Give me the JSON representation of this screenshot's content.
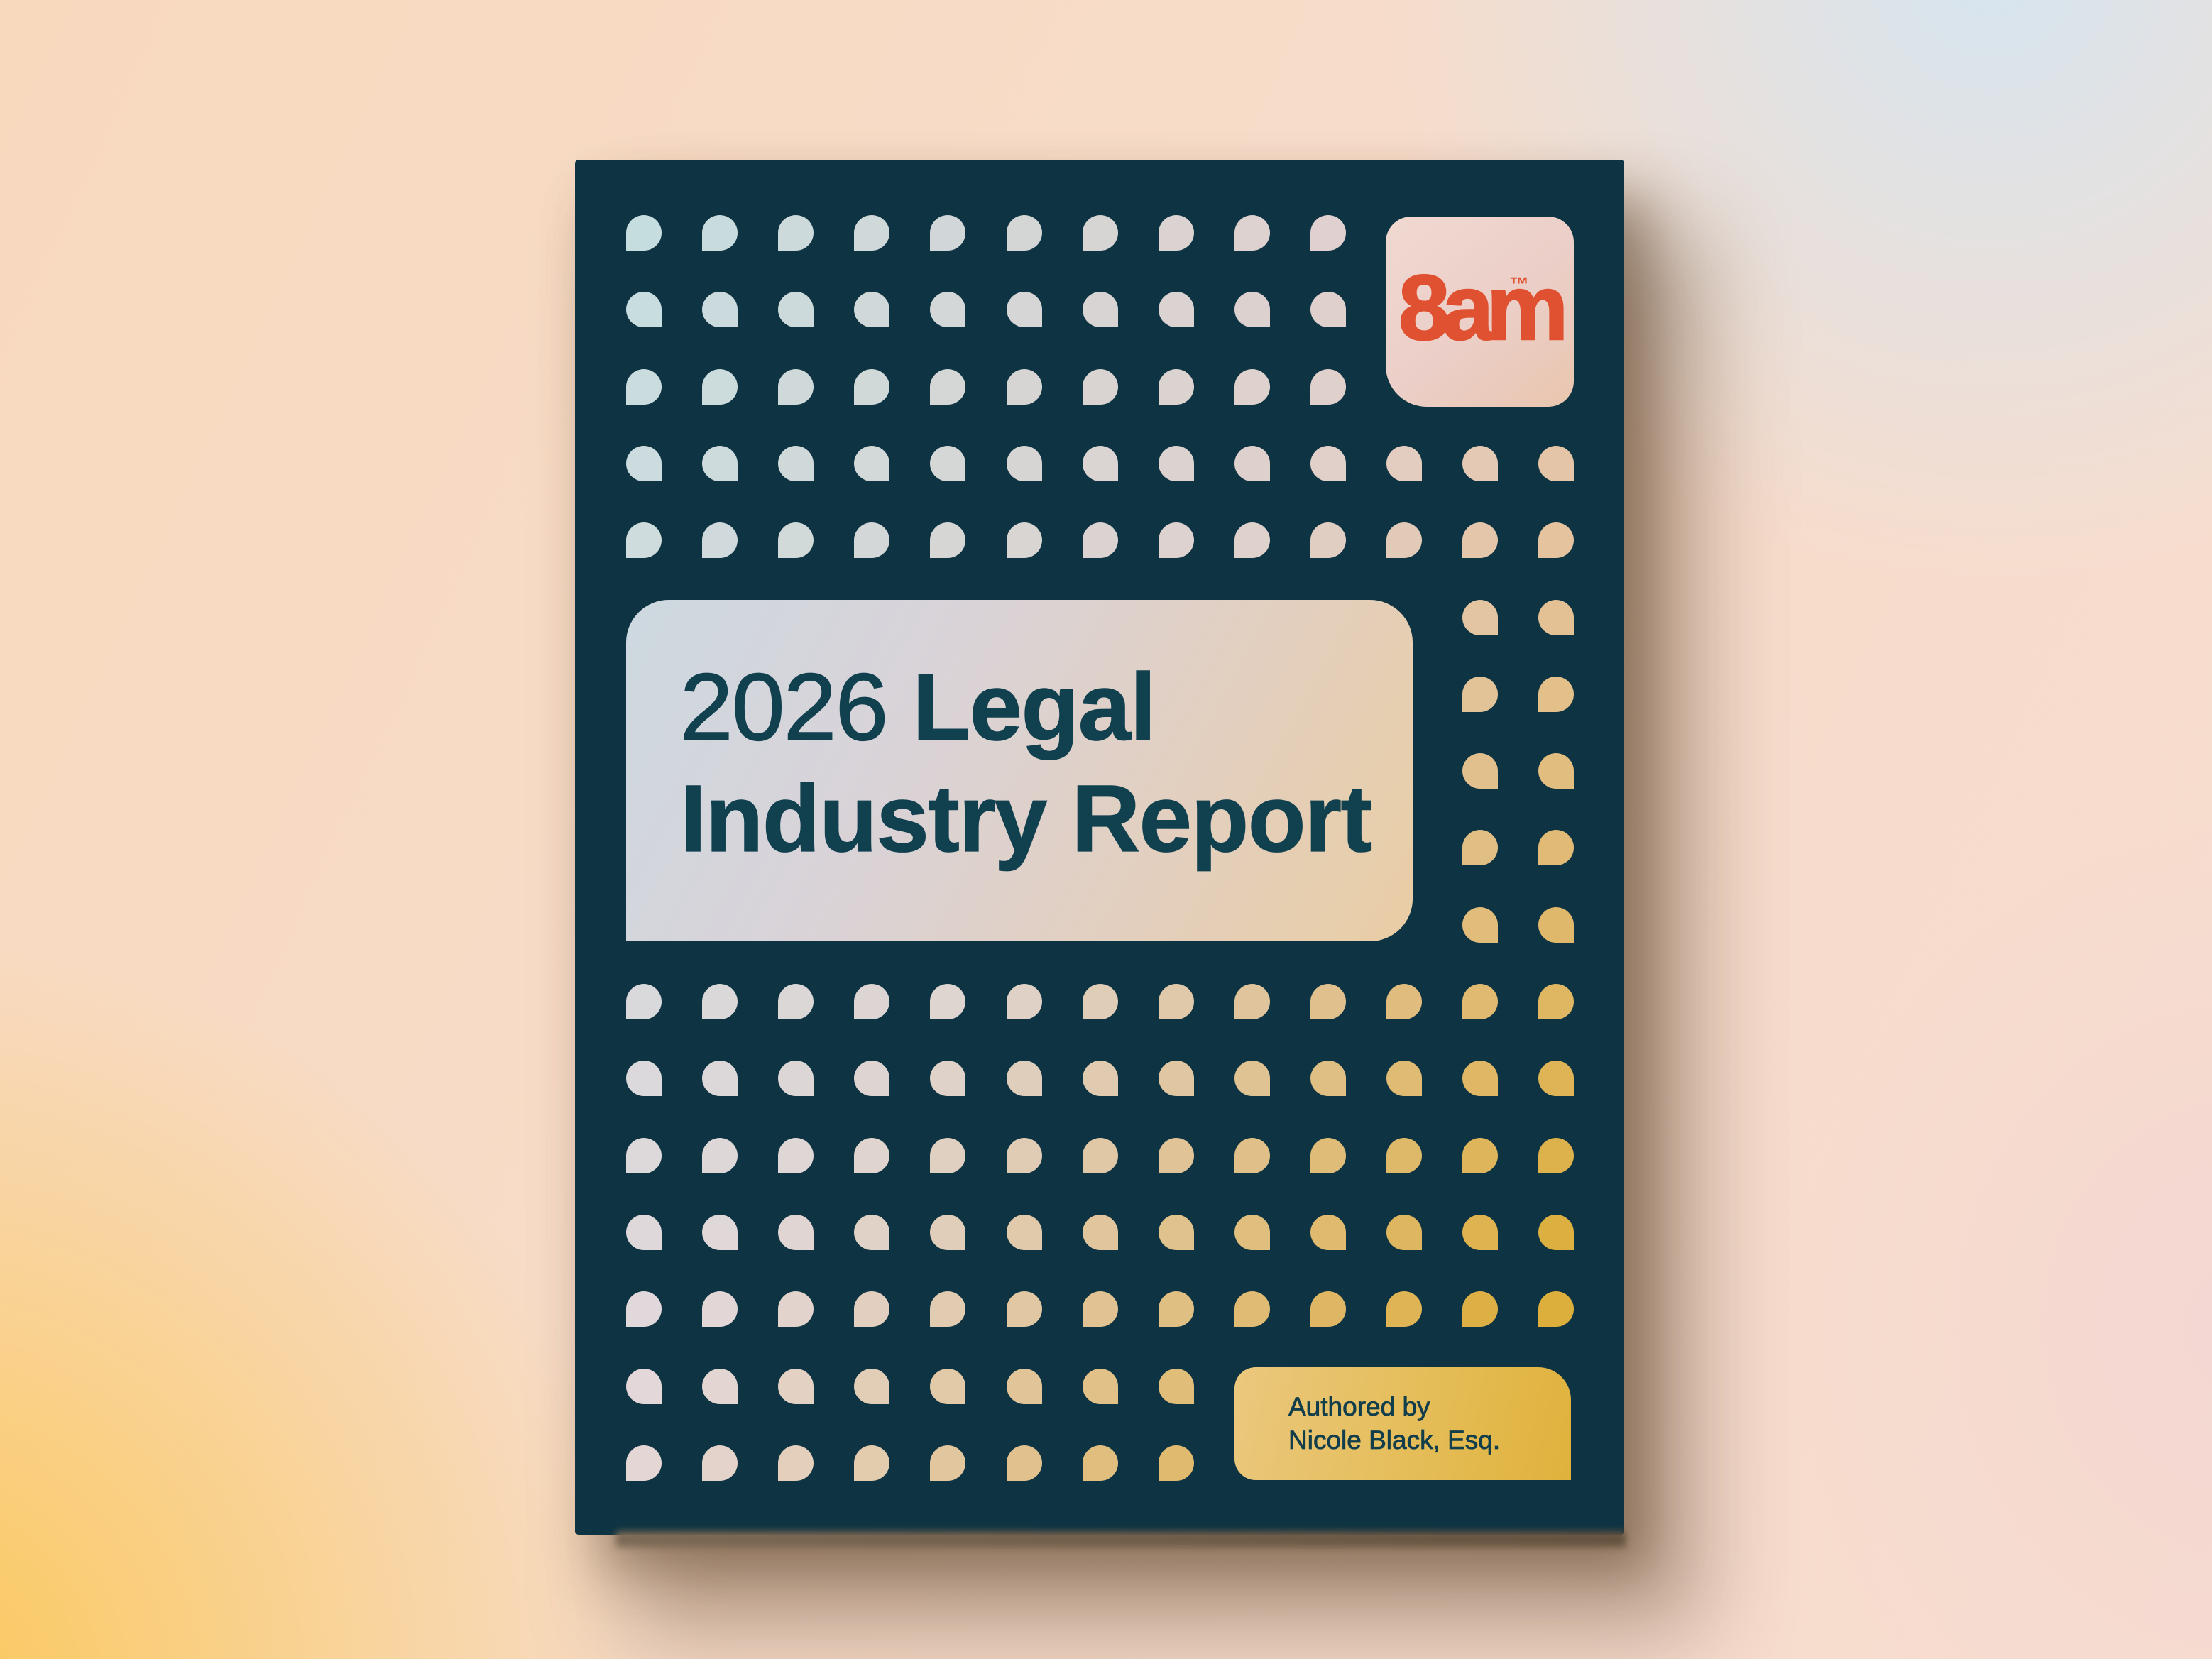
{
  "page": {
    "background": {
      "top_left_peach": "#F7DBC8",
      "top_right_blue": "#D6E5F0",
      "bottom_left_gold": "#FBC85A",
      "right_pink": "#F3D6D2",
      "bottom_right_pink": "#F8DED2"
    }
  },
  "book": {
    "cover_color": "#0E3342",
    "page_edge_color": "#6F5D4A",
    "logo_badge": {
      "text": "8am",
      "trademark": "™",
      "text_color": "#DF5130",
      "gradient": [
        "#F0D9D2",
        "#EBCEC7",
        "#E9C6AE"
      ]
    },
    "title_panel": {
      "full_title": "2026 Legal Industry Report",
      "text_color": "#11404F",
      "gradient": [
        "#CDD9E0",
        "#D9D3D8",
        "#E3CFBE",
        "#E9CDA4"
      ],
      "lines": [
        {
          "segments": [
            {
              "text": "2026 ",
              "bold": false
            },
            {
              "text": "Legal",
              "bold": true
            }
          ]
        },
        {
          "segments": [
            {
              "text": "Industry Report",
              "bold": true
            }
          ]
        }
      ]
    },
    "author_box": {
      "line1": "Authored by",
      "line2": "Nicole Black, Esq.",
      "text_color": "#123E4C",
      "gradient": [
        "#EAC87E",
        "#E5BD58",
        "#DFB23C"
      ]
    },
    "dot_field": {
      "rows": 17,
      "cols": 13,
      "corner_colors": {
        "top_left": "#C6DDDF",
        "top_right": "#E8CCC9",
        "bottom_left": "#E5D7DA",
        "bottom_right_base": "#E6C9B4"
      },
      "gold_color": "#DCAE3C"
    }
  }
}
